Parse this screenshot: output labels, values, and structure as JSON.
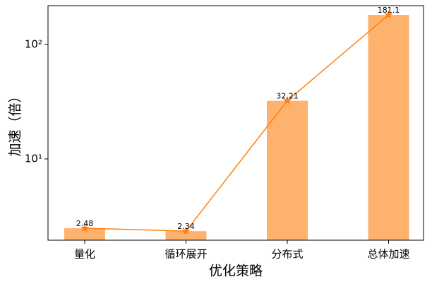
{
  "chart_data": {
    "type": "bar",
    "log_scale": true,
    "x_label": "优化策略",
    "y_label": "加速（倍）",
    "categories": [
      "量化",
      "循环展开",
      "分布式",
      "总体加速"
    ],
    "values": [
      2.48,
      2.34,
      32.21,
      181.1
    ],
    "color": "#ffb26e",
    "line_color": "#ff7f0e",
    "ylim": [
      1.95,
      218
    ],
    "yticks": [
      {
        "value": 10,
        "label": "10¹"
      },
      {
        "value": 100,
        "label": "10²"
      }
    ]
  }
}
